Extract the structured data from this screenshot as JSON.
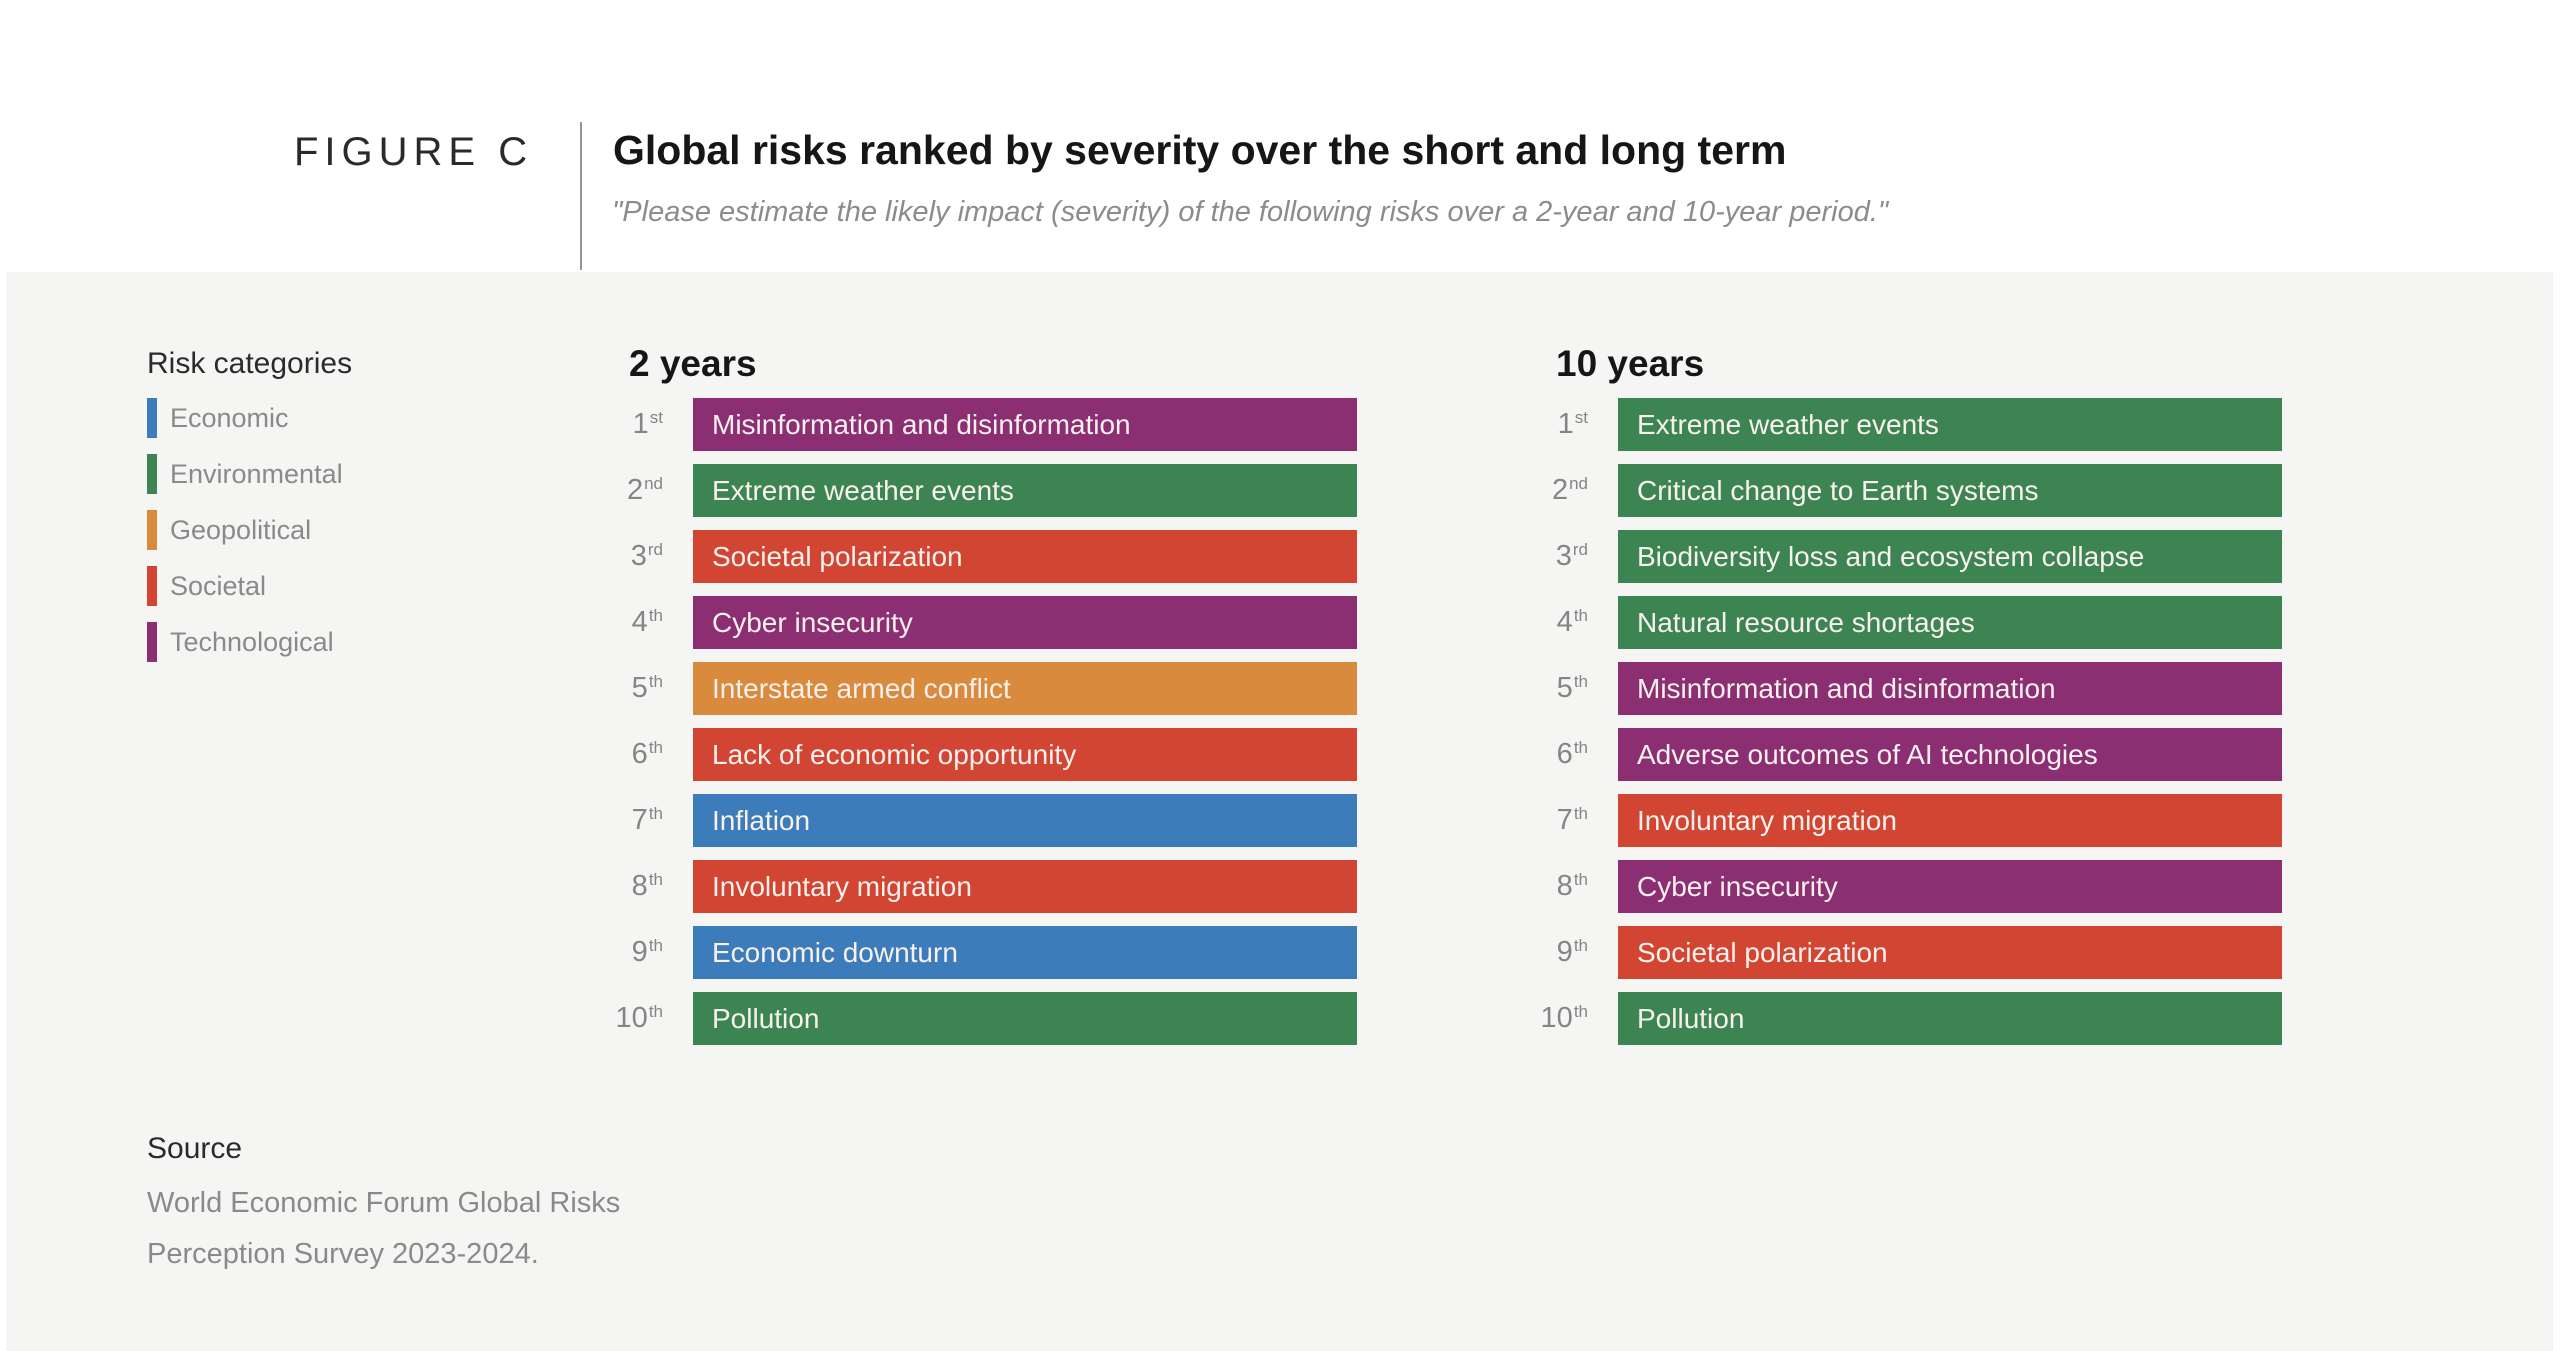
{
  "header": {
    "figure_label": "FIGURE C",
    "title": "Global risks ranked by severity over the short and long term",
    "subtitle": "\"Please estimate the likely impact (severity) of the following risks over a 2-year and 10-year period.\""
  },
  "legend": {
    "title": "Risk categories",
    "items": [
      {
        "label": "Economic"
      },
      {
        "label": "Environmental"
      },
      {
        "label": "Geopolitical"
      },
      {
        "label": "Societal"
      },
      {
        "label": "Technological"
      }
    ]
  },
  "chart_data": {
    "type": "table",
    "title": "Global risks ranked by severity over the short and long term",
    "subtitle": "\"Please estimate the likely impact (severity) of the following risks over a 2-year and 10-year period.\"",
    "legend_position": "left",
    "category_colors": {
      "Economic": "#3c7cba",
      "Environmental": "#3d8453",
      "Geopolitical": "#d98a3d",
      "Societal": "#d14532",
      "Technological": "#8b2e72"
    },
    "columns": [
      {
        "header": "2 years",
        "rows": [
          {
            "rank": "1",
            "suffix": "st",
            "label": "Misinformation and disinformation",
            "category": "Technological"
          },
          {
            "rank": "2",
            "suffix": "nd",
            "label": "Extreme weather events",
            "category": "Environmental"
          },
          {
            "rank": "3",
            "suffix": "rd",
            "label": "Societal polarization",
            "category": "Societal"
          },
          {
            "rank": "4",
            "suffix": "th",
            "label": "Cyber insecurity",
            "category": "Technological"
          },
          {
            "rank": "5",
            "suffix": "th",
            "label": "Interstate armed conflict",
            "category": "Geopolitical"
          },
          {
            "rank": "6",
            "suffix": "th",
            "label": "Lack of economic opportunity",
            "category": "Societal"
          },
          {
            "rank": "7",
            "suffix": "th",
            "label": "Inflation",
            "category": "Economic"
          },
          {
            "rank": "8",
            "suffix": "th",
            "label": "Involuntary migration",
            "category": "Societal"
          },
          {
            "rank": "9",
            "suffix": "th",
            "label": "Economic downturn",
            "category": "Economic"
          },
          {
            "rank": "10",
            "suffix": "th",
            "label": "Pollution",
            "category": "Environmental"
          }
        ]
      },
      {
        "header": "10 years",
        "rows": [
          {
            "rank": "1",
            "suffix": "st",
            "label": "Extreme weather events",
            "category": "Environmental"
          },
          {
            "rank": "2",
            "suffix": "nd",
            "label": "Critical change to Earth systems",
            "category": "Environmental"
          },
          {
            "rank": "3",
            "suffix": "rd",
            "label": "Biodiversity loss and ecosystem collapse",
            "category": "Environmental"
          },
          {
            "rank": "4",
            "suffix": "th",
            "label": "Natural resource shortages",
            "category": "Environmental"
          },
          {
            "rank": "5",
            "suffix": "th",
            "label": "Misinformation and disinformation",
            "category": "Technological"
          },
          {
            "rank": "6",
            "suffix": "th",
            "label": "Adverse outcomes of AI technologies",
            "category": "Technological"
          },
          {
            "rank": "7",
            "suffix": "th",
            "label": "Involuntary migration",
            "category": "Societal"
          },
          {
            "rank": "8",
            "suffix": "th",
            "label": "Cyber insecurity",
            "category": "Technological"
          },
          {
            "rank": "9",
            "suffix": "th",
            "label": "Societal polarization",
            "category": "Societal"
          },
          {
            "rank": "10",
            "suffix": "th",
            "label": "Pollution",
            "category": "Environmental"
          }
        ]
      }
    ]
  },
  "source": {
    "title": "Source",
    "lines": [
      "World Economic Forum Global Risks",
      "Perception Survey 2023-2024."
    ]
  },
  "colors": {
    "page_background": "#ffffff",
    "panel_background": "#f5f5f4",
    "title_text": "#161616",
    "muted_text": "#8a8a8a",
    "bar_text": "#f8f1ee"
  }
}
